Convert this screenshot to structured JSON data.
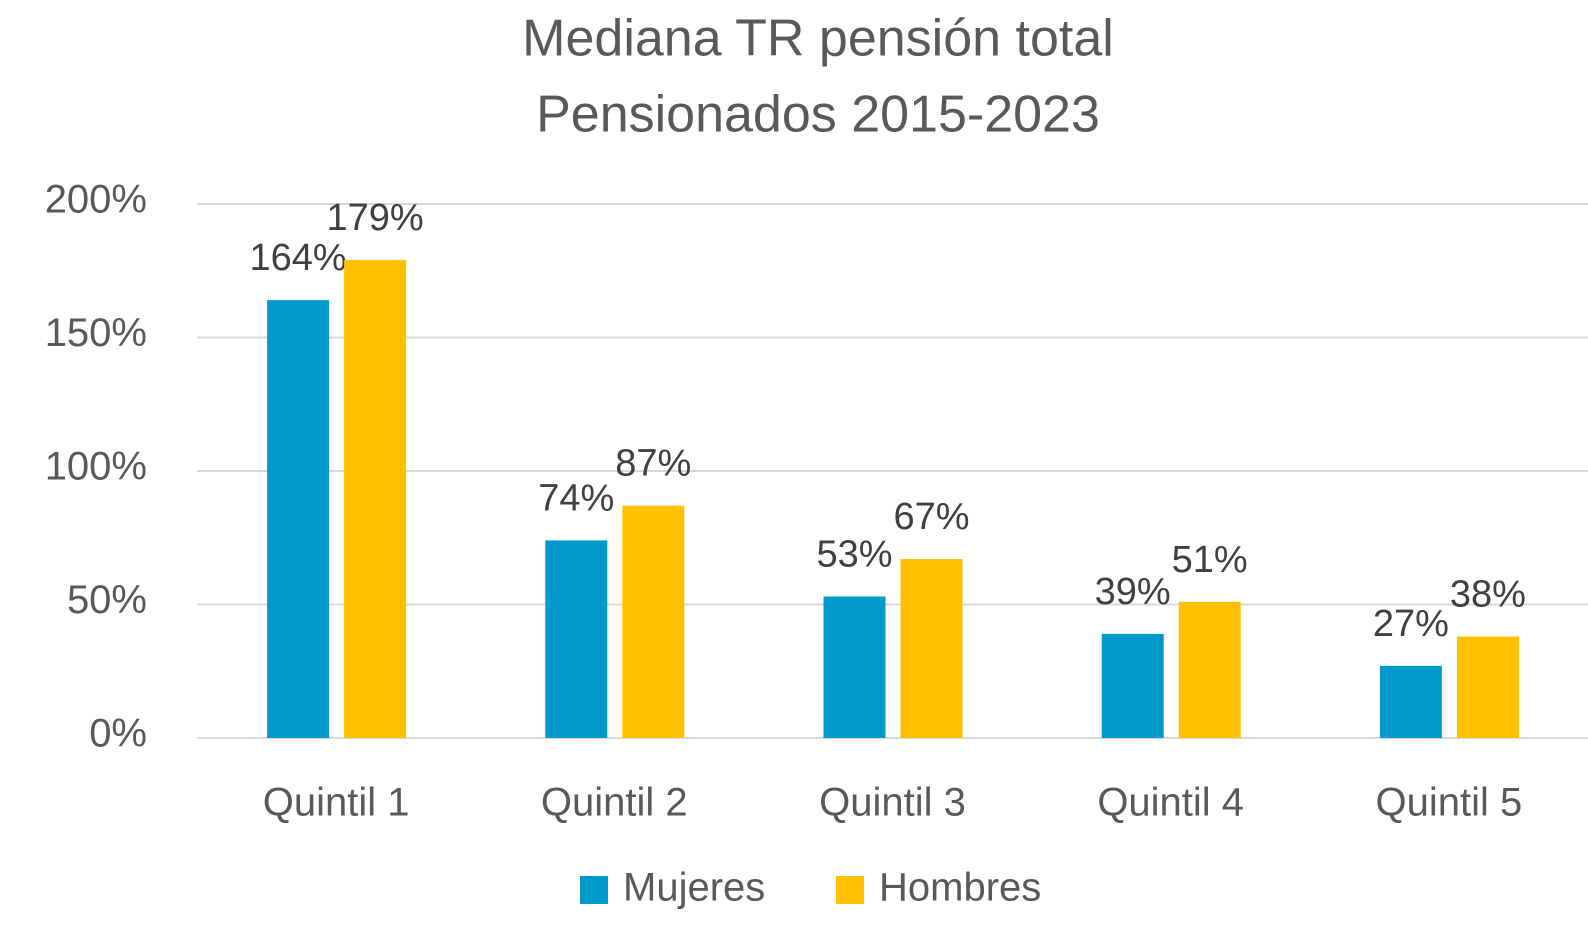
{
  "chart_data": {
    "type": "bar",
    "title": "Mediana TR pensión total",
    "subtitle": "Pensionados 2015-2023",
    "categories": [
      "Quintil 1",
      "Quintil 2",
      "Quintil 3",
      "Quintil 4",
      "Quintil 5"
    ],
    "series": [
      {
        "name": "Mujeres",
        "color": "#0099cc",
        "values": [
          164,
          74,
          53,
          39,
          27
        ],
        "value_labels": [
          "164%",
          "74%",
          "53%",
          "39%",
          "27%"
        ]
      },
      {
        "name": "Hombres",
        "color": "#ffc000",
        "values": [
          179,
          87,
          67,
          51,
          38
        ],
        "value_labels": [
          "179%",
          "87%",
          "67%",
          "51%",
          "38%"
        ]
      }
    ],
    "ylim": [
      0,
      200
    ],
    "yticks": [
      {
        "value": 0,
        "label": "0%"
      },
      {
        "value": 50,
        "label": "50%"
      },
      {
        "value": 100,
        "label": "100%"
      },
      {
        "value": 150,
        "label": "150%"
      },
      {
        "value": 200,
        "label": "200%"
      }
    ],
    "grid": true,
    "legend": "bottom"
  }
}
